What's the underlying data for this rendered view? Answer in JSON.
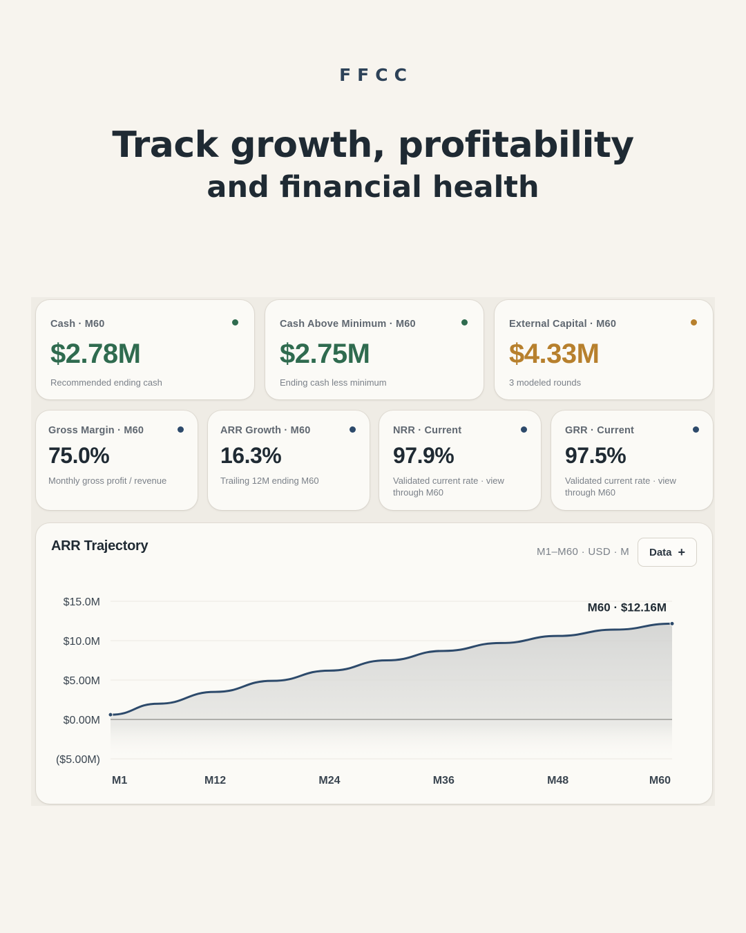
{
  "brand": "FFCC",
  "headline": {
    "line1": "Track growth, profitability",
    "line2": "and financial health"
  },
  "colors": {
    "green": "#2f6b4f",
    "gold": "#b7802d",
    "navy": "#2d4a6b",
    "background": "#f7f4ee"
  },
  "top_cards": [
    {
      "label": "Cash · M60",
      "value": "$2.78M",
      "sub": "Recommended ending cash",
      "status": "green"
    },
    {
      "label": "Cash Above Minimum · M60",
      "value": "$2.75M",
      "sub": "Ending cash less minimum",
      "status": "green"
    },
    {
      "label": "External Capital · M60",
      "value": "$4.33M",
      "sub": "3 modeled rounds",
      "status": "gold"
    }
  ],
  "metric_cards": [
    {
      "label": "Gross Margin · M60",
      "value": "75.0%",
      "sub1": "Monthly gross profit / revenue",
      "sub2": "",
      "status": "navy"
    },
    {
      "label": "ARR Growth · M60",
      "value": "16.3%",
      "sub1": "Trailing 12M ending M60",
      "sub2": "",
      "status": "navy"
    },
    {
      "label": "NRR · Current",
      "value": "97.9%",
      "sub1": "Validated current rate · view",
      "sub2": "through M60",
      "status": "navy"
    },
    {
      "label": "GRR · Current",
      "value": "97.5%",
      "sub1": "Validated current rate · view",
      "sub2": "through M60",
      "status": "navy"
    }
  ],
  "chart_panel": {
    "title": "ARR Trajectory",
    "meta": "M1–M60 · USD · M",
    "data_button": "Data",
    "data_button_icon": "plus-icon"
  },
  "chart_data": {
    "type": "area",
    "title": "ARR Trajectory",
    "x": [
      1,
      6,
      12,
      18,
      24,
      30,
      36,
      42,
      48,
      54,
      60
    ],
    "x_tick_values": [
      1,
      12,
      24,
      36,
      48,
      60
    ],
    "x_tick_labels": [
      "M1",
      "M12",
      "M24",
      "M36",
      "M48",
      "M60"
    ],
    "series": [
      {
        "values": [
          0.6,
          2.0,
          3.5,
          4.9,
          6.2,
          7.5,
          8.7,
          9.7,
          10.6,
          11.4,
          12.16
        ]
      }
    ],
    "y_ticks": [
      15,
      10,
      5,
      0,
      -5
    ],
    "y_tick_labels": [
      "$15.0M",
      "$10.0M",
      "$5.00M",
      "$0.00M",
      "($5.00M)"
    ],
    "ylim": [
      -5,
      15
    ],
    "xlim": [
      1,
      60
    ],
    "annotation": {
      "x": 60,
      "y": 12.16,
      "text": "M60 · $12.16M"
    },
    "grid": true
  }
}
